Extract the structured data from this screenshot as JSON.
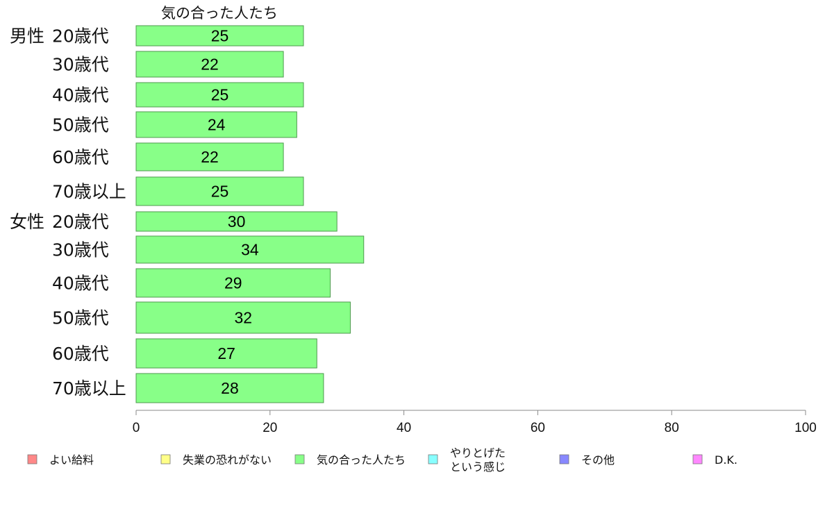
{
  "chart_data": {
    "type": "bar",
    "orientation": "horizontal",
    "title": "気の合った人たち",
    "groups": [
      {
        "label": "男性",
        "start_index": 0
      },
      {
        "label": "女性",
        "start_index": 6
      }
    ],
    "categories": [
      "20歳代",
      "30歳代",
      "40歳代",
      "50歳代",
      "60歳代",
      "70歳以上",
      "20歳代",
      "30歳代",
      "40歳代",
      "50歳代",
      "60歳代",
      "70歳以上"
    ],
    "values": [
      25,
      22,
      25,
      24,
      22,
      25,
      30,
      34,
      29,
      32,
      27,
      28
    ],
    "series_color": "#88ff88",
    "xlim": [
      0,
      100
    ],
    "xticks": [
      0,
      20,
      40,
      60,
      80,
      100
    ],
    "grid": false,
    "legend_position": "bottom",
    "legend": [
      {
        "label": "よい給料",
        "color": "#ff8888"
      },
      {
        "label": "失業の恐れがない",
        "color": "#ffff88"
      },
      {
        "label": "気の合った人たち",
        "color": "#88ff88"
      },
      {
        "label": "やりとげた\nという感じ",
        "color": "#88ffff"
      },
      {
        "label": "その他",
        "color": "#8888ff"
      },
      {
        "label": "D.K.",
        "color": "#ff88ff"
      }
    ]
  }
}
